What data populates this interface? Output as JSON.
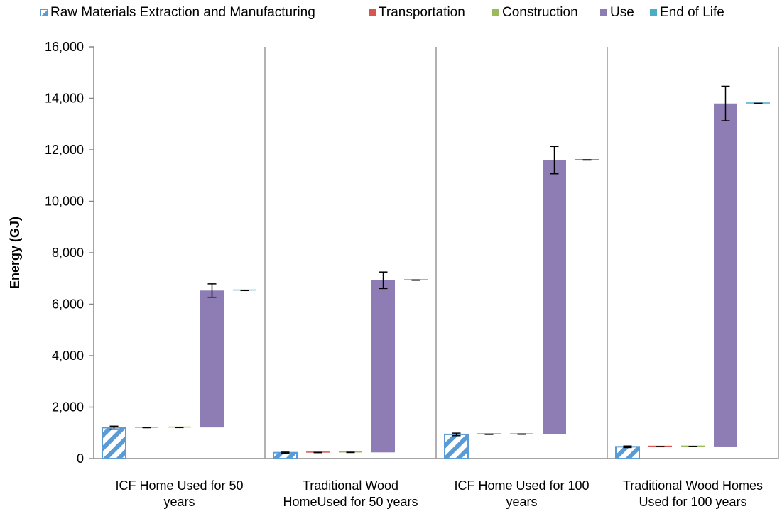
{
  "chart_data": {
    "type": "bar",
    "title": "",
    "xlabel": "",
    "ylabel": "Energy (GJ)",
    "ylim": [
      0,
      16000
    ],
    "yticks": [
      "0",
      "2,000",
      "4,000",
      "6,000",
      "8,000",
      "10,000",
      "12,000",
      "14,000",
      "16,000"
    ],
    "ytick_values": [
      0,
      2000,
      4000,
      6000,
      8000,
      10000,
      12000,
      14000,
      16000
    ],
    "legend_position": "top",
    "grid": false,
    "categories": [
      [
        "ICF Home Used for 50",
        "years"
      ],
      [
        "Traditional Wood",
        "HomeUsed for 50 years"
      ],
      [
        "ICF Home Used for 100",
        "years"
      ],
      [
        "Traditional Wood Homes",
        "Used for 100 years"
      ]
    ],
    "series": [
      {
        "name": "Raw Materials Extraction and Manufacturing",
        "color": "#5B9BD5",
        "pattern": "hatch",
        "base": [
          0,
          0,
          0,
          0
        ],
        "values": [
          1200,
          230,
          940,
          460
        ],
        "error": [
          60,
          20,
          50,
          30
        ]
      },
      {
        "name": "Transportation",
        "color": "#D9534F",
        "base": [
          1200,
          230,
          940,
          460
        ],
        "values": [
          5,
          5,
          5,
          5
        ],
        "error": [
          5,
          5,
          5,
          5
        ]
      },
      {
        "name": "Construction",
        "color": "#9BBB59",
        "base": [
          1205,
          235,
          945,
          465
        ],
        "values": [
          5,
          5,
          5,
          5
        ],
        "error": [
          5,
          5,
          5,
          5
        ]
      },
      {
        "name": "Use",
        "color": "#8E7CB4",
        "base": [
          1210,
          240,
          950,
          470
        ],
        "values": [
          5320,
          6690,
          10650,
          13330
        ],
        "error": [
          260,
          320,
          530,
          670
        ]
      },
      {
        "name": "End of Life",
        "color": "#4BACC6",
        "base": [
          6530,
          6930,
          11600,
          13800
        ],
        "values": [
          5,
          5,
          5,
          5
        ],
        "error": [
          5,
          5,
          5,
          5
        ]
      }
    ]
  }
}
